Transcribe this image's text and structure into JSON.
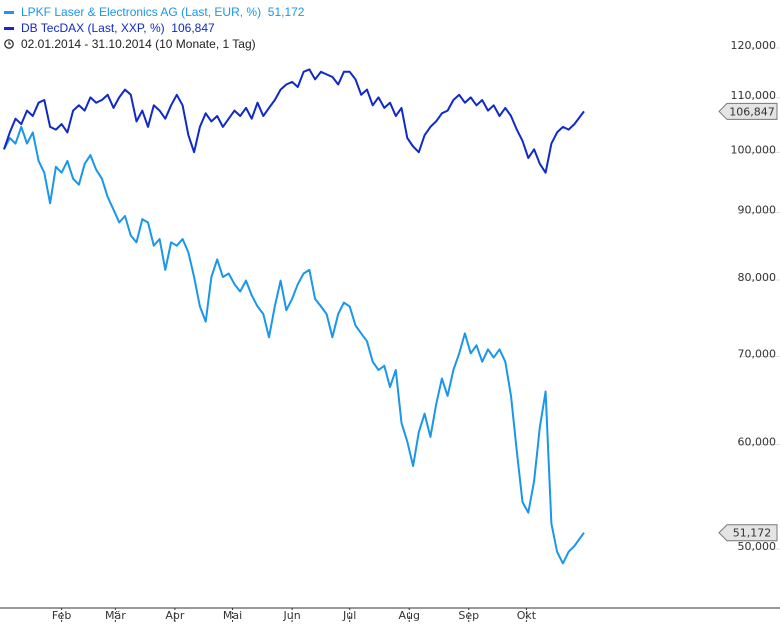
{
  "legend": {
    "series1_label": "LPKF Laser & Electronics AG (Last, EUR, %)",
    "series1_value": "51,172",
    "series2_label": "DB TecDAX (Last, XXP, %)",
    "series2_value": "106,847",
    "period": "02.01.2014 - 31.10.2014 (10 Monate, 1 Tag)",
    "clock_icon": "clock-icon"
  },
  "colors": {
    "lpkf": "#1a96ea",
    "tecdax": "#1029c8",
    "axis": "#333333",
    "tick_text": "#333333",
    "badge_fill": "#e4e4e4",
    "badge_stroke": "#777777"
  },
  "chart_data": {
    "type": "line",
    "yscale": "log",
    "ylim": [
      45000,
      123000
    ],
    "yticks": [
      {
        "value": 50000,
        "label": "50,000"
      },
      {
        "value": 60000,
        "label": "60,000"
      },
      {
        "value": 70000,
        "label": "70,000"
      },
      {
        "value": 80000,
        "label": "80,000"
      },
      {
        "value": 90000,
        "label": "90,000"
      },
      {
        "value": 100000,
        "label": "100,000"
      },
      {
        "value": 110000,
        "label": "110,000"
      },
      {
        "value": 120000,
        "label": "120,000"
      }
    ],
    "xlim": [
      "2014-01-02",
      "2014-10-31"
    ],
    "xticks": [
      {
        "date": "2014-02-01",
        "label": "Feb"
      },
      {
        "date": "2014-03-01",
        "label": "Mär"
      },
      {
        "date": "2014-04-01",
        "label": "Apr"
      },
      {
        "date": "2014-05-01",
        "label": "Mai"
      },
      {
        "date": "2014-06-01",
        "label": "Jun"
      },
      {
        "date": "2014-07-01",
        "label": "Jul"
      },
      {
        "date": "2014-08-01",
        "label": "Aug"
      },
      {
        "date": "2014-09-01",
        "label": "Sep"
      },
      {
        "date": "2014-10-01",
        "label": "Okt"
      }
    ],
    "series": [
      {
        "name": "LPKF Laser & Electronics AG",
        "last_label": "51,172",
        "last_value": 51172,
        "points": [
          [
            "2014-01-02",
            100000
          ],
          [
            "2014-01-05",
            102000
          ],
          [
            "2014-01-08",
            101000
          ],
          [
            "2014-01-11",
            104000
          ],
          [
            "2014-01-14",
            101000
          ],
          [
            "2014-01-17",
            103000
          ],
          [
            "2014-01-20",
            98000
          ],
          [
            "2014-01-23",
            96000
          ],
          [
            "2014-01-26",
            91000
          ],
          [
            "2014-01-29",
            97000
          ],
          [
            "2014-02-01",
            96000
          ],
          [
            "2014-02-04",
            98000
          ],
          [
            "2014-02-07",
            95000
          ],
          [
            "2014-02-10",
            94000
          ],
          [
            "2014-02-13",
            97500
          ],
          [
            "2014-02-16",
            99000
          ],
          [
            "2014-02-19",
            96500
          ],
          [
            "2014-02-22",
            95000
          ],
          [
            "2014-02-25",
            92000
          ],
          [
            "2014-02-28",
            90000
          ],
          [
            "2014-03-03",
            88000
          ],
          [
            "2014-03-06",
            89000
          ],
          [
            "2014-03-09",
            86000
          ],
          [
            "2014-03-12",
            85000
          ],
          [
            "2014-03-15",
            88500
          ],
          [
            "2014-03-18",
            88000
          ],
          [
            "2014-03-21",
            84500
          ],
          [
            "2014-03-24",
            85500
          ],
          [
            "2014-03-27",
            81000
          ],
          [
            "2014-03-30",
            85000
          ],
          [
            "2014-04-02",
            84500
          ],
          [
            "2014-04-05",
            85500
          ],
          [
            "2014-04-08",
            83500
          ],
          [
            "2014-04-11",
            80000
          ],
          [
            "2014-04-14",
            76000
          ],
          [
            "2014-04-17",
            74000
          ],
          [
            "2014-04-20",
            80000
          ],
          [
            "2014-04-23",
            82500
          ],
          [
            "2014-04-26",
            80000
          ],
          [
            "2014-04-29",
            80500
          ],
          [
            "2014-05-02",
            79000
          ],
          [
            "2014-05-05",
            78000
          ],
          [
            "2014-05-08",
            79500
          ],
          [
            "2014-05-11",
            77500
          ],
          [
            "2014-05-14",
            76000
          ],
          [
            "2014-05-17",
            75000
          ],
          [
            "2014-05-20",
            72000
          ],
          [
            "2014-05-23",
            76000
          ],
          [
            "2014-05-26",
            79500
          ],
          [
            "2014-05-29",
            75500
          ],
          [
            "2014-06-01",
            77000
          ],
          [
            "2014-06-04",
            79000
          ],
          [
            "2014-06-07",
            80500
          ],
          [
            "2014-06-10",
            81000
          ],
          [
            "2014-06-13",
            77000
          ],
          [
            "2014-06-16",
            76000
          ],
          [
            "2014-06-19",
            75000
          ],
          [
            "2014-06-22",
            72000
          ],
          [
            "2014-06-25",
            75000
          ],
          [
            "2014-06-28",
            76500
          ],
          [
            "2014-07-01",
            76000
          ],
          [
            "2014-07-04",
            73500
          ],
          [
            "2014-07-07",
            72500
          ],
          [
            "2014-07-10",
            71500
          ],
          [
            "2014-07-13",
            69000
          ],
          [
            "2014-07-16",
            68000
          ],
          [
            "2014-07-19",
            68500
          ],
          [
            "2014-07-22",
            66000
          ],
          [
            "2014-07-25",
            68000
          ],
          [
            "2014-07-28",
            62000
          ],
          [
            "2014-07-31",
            60000
          ],
          [
            "2014-08-03",
            57500
          ],
          [
            "2014-08-06",
            61000
          ],
          [
            "2014-08-09",
            63000
          ],
          [
            "2014-08-12",
            60500
          ],
          [
            "2014-08-15",
            64000
          ],
          [
            "2014-08-18",
            67000
          ],
          [
            "2014-08-21",
            65000
          ],
          [
            "2014-08-24",
            68000
          ],
          [
            "2014-08-27",
            70000
          ],
          [
            "2014-08-30",
            72500
          ],
          [
            "2014-09-02",
            70000
          ],
          [
            "2014-09-05",
            71000
          ],
          [
            "2014-09-08",
            69000
          ],
          [
            "2014-09-11",
            70500
          ],
          [
            "2014-09-14",
            69500
          ],
          [
            "2014-09-17",
            70500
          ],
          [
            "2014-09-20",
            69000
          ],
          [
            "2014-09-23",
            65000
          ],
          [
            "2014-09-26",
            59000
          ],
          [
            "2014-09-29",
            54000
          ],
          [
            "2014-10-02",
            53000
          ],
          [
            "2014-10-05",
            56000
          ],
          [
            "2014-10-08",
            61500
          ],
          [
            "2014-10-11",
            65500
          ],
          [
            "2014-10-14",
            52000
          ],
          [
            "2014-10-17",
            49500
          ],
          [
            "2014-10-20",
            48500
          ],
          [
            "2014-10-23",
            49500
          ],
          [
            "2014-10-26",
            50000
          ],
          [
            "2014-10-31",
            51172
          ]
        ]
      },
      {
        "name": "DB TecDAX",
        "last_label": "106,847",
        "last_value": 106847,
        "points": [
          [
            "2014-01-02",
            100000
          ],
          [
            "2014-01-05",
            103000
          ],
          [
            "2014-01-08",
            105500
          ],
          [
            "2014-01-11",
            104500
          ],
          [
            "2014-01-14",
            107000
          ],
          [
            "2014-01-17",
            106000
          ],
          [
            "2014-01-20",
            108500
          ],
          [
            "2014-01-23",
            109000
          ],
          [
            "2014-01-26",
            104000
          ],
          [
            "2014-01-29",
            103500
          ],
          [
            "2014-02-01",
            104500
          ],
          [
            "2014-02-04",
            103000
          ],
          [
            "2014-02-07",
            107000
          ],
          [
            "2014-02-10",
            108000
          ],
          [
            "2014-02-13",
            107000
          ],
          [
            "2014-02-16",
            109500
          ],
          [
            "2014-02-19",
            108500
          ],
          [
            "2014-02-22",
            109000
          ],
          [
            "2014-02-25",
            110000
          ],
          [
            "2014-02-28",
            107500
          ],
          [
            "2014-03-03",
            109500
          ],
          [
            "2014-03-06",
            111000
          ],
          [
            "2014-03-09",
            110000
          ],
          [
            "2014-03-12",
            105000
          ],
          [
            "2014-03-15",
            107000
          ],
          [
            "2014-03-18",
            104000
          ],
          [
            "2014-03-21",
            108000
          ],
          [
            "2014-03-24",
            107000
          ],
          [
            "2014-03-27",
            105500
          ],
          [
            "2014-03-30",
            108000
          ],
          [
            "2014-04-02",
            110000
          ],
          [
            "2014-04-05",
            108000
          ],
          [
            "2014-04-08",
            102500
          ],
          [
            "2014-04-11",
            99500
          ],
          [
            "2014-04-14",
            104000
          ],
          [
            "2014-04-17",
            106500
          ],
          [
            "2014-04-20",
            105000
          ],
          [
            "2014-04-23",
            106000
          ],
          [
            "2014-04-26",
            104000
          ],
          [
            "2014-04-29",
            105500
          ],
          [
            "2014-05-02",
            107000
          ],
          [
            "2014-05-05",
            106000
          ],
          [
            "2014-05-08",
            107500
          ],
          [
            "2014-05-11",
            105500
          ],
          [
            "2014-05-14",
            108500
          ],
          [
            "2014-05-17",
            106000
          ],
          [
            "2014-05-20",
            107500
          ],
          [
            "2014-05-23",
            109000
          ],
          [
            "2014-05-26",
            111000
          ],
          [
            "2014-05-29",
            112000
          ],
          [
            "2014-06-01",
            112500
          ],
          [
            "2014-06-04",
            111500
          ],
          [
            "2014-06-07",
            114500
          ],
          [
            "2014-06-10",
            115000
          ],
          [
            "2014-06-13",
            113000
          ],
          [
            "2014-06-16",
            114500
          ],
          [
            "2014-06-19",
            114000
          ],
          [
            "2014-06-22",
            113500
          ],
          [
            "2014-06-25",
            112000
          ],
          [
            "2014-06-28",
            114500
          ],
          [
            "2014-07-01",
            114500
          ],
          [
            "2014-07-04",
            113000
          ],
          [
            "2014-07-07",
            110000
          ],
          [
            "2014-07-10",
            111000
          ],
          [
            "2014-07-13",
            108000
          ],
          [
            "2014-07-16",
            109500
          ],
          [
            "2014-07-19",
            107500
          ],
          [
            "2014-07-22",
            108500
          ],
          [
            "2014-07-25",
            106000
          ],
          [
            "2014-07-28",
            107500
          ],
          [
            "2014-07-31",
            102000
          ],
          [
            "2014-08-03",
            100500
          ],
          [
            "2014-08-06",
            99500
          ],
          [
            "2014-08-09",
            102500
          ],
          [
            "2014-08-12",
            104000
          ],
          [
            "2014-08-15",
            105000
          ],
          [
            "2014-08-18",
            106500
          ],
          [
            "2014-08-21",
            107000
          ],
          [
            "2014-08-24",
            109000
          ],
          [
            "2014-08-27",
            110000
          ],
          [
            "2014-08-30",
            108500
          ],
          [
            "2014-09-02",
            109500
          ],
          [
            "2014-09-05",
            108000
          ],
          [
            "2014-09-08",
            109000
          ],
          [
            "2014-09-11",
            107000
          ],
          [
            "2014-09-14",
            108000
          ],
          [
            "2014-09-17",
            106000
          ],
          [
            "2014-09-20",
            107500
          ],
          [
            "2014-09-23",
            106000
          ],
          [
            "2014-09-26",
            103500
          ],
          [
            "2014-09-29",
            101500
          ],
          [
            "2014-10-02",
            98500
          ],
          [
            "2014-10-05",
            100000
          ],
          [
            "2014-10-08",
            97500
          ],
          [
            "2014-10-11",
            96000
          ],
          [
            "2014-10-14",
            101000
          ],
          [
            "2014-10-17",
            103000
          ],
          [
            "2014-10-20",
            104000
          ],
          [
            "2014-10-23",
            103500
          ],
          [
            "2014-10-26",
            104500
          ],
          [
            "2014-10-31",
            106847
          ]
        ]
      }
    ]
  }
}
